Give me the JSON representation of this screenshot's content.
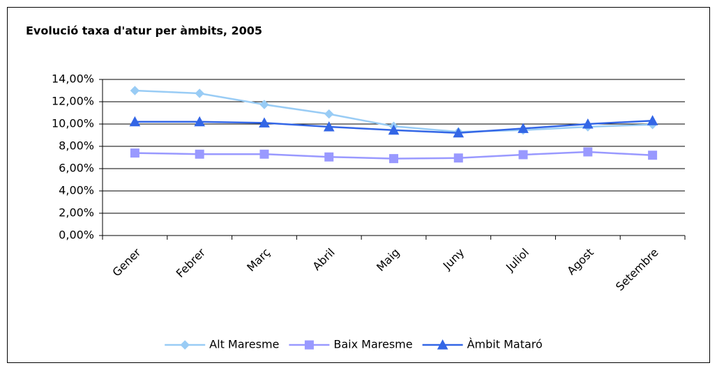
{
  "chart_data": {
    "type": "line",
    "title": "Evolució taxa d'atur per àmbits, 2005",
    "categories": [
      "Gener",
      "Febrer",
      "Març",
      "Abril",
      "Maig",
      "Juny",
      "Juliol",
      "Agost",
      "Setembre"
    ],
    "series": [
      {
        "name": "Alt Maresme",
        "color": "#99ccf5",
        "marker": "diamond",
        "values": [
          13.0,
          12.75,
          11.75,
          10.9,
          9.8,
          9.3,
          9.45,
          9.75,
          9.95
        ]
      },
      {
        "name": "Baix Maresme",
        "color": "#9999ff",
        "marker": "square",
        "values": [
          7.4,
          7.3,
          7.3,
          7.05,
          6.9,
          6.95,
          7.25,
          7.5,
          7.2
        ]
      },
      {
        "name": "Àmbit Mataró",
        "color": "#3366e6",
        "marker": "triangle",
        "values": [
          10.2,
          10.2,
          10.1,
          9.75,
          9.45,
          9.2,
          9.6,
          10.0,
          10.3
        ]
      }
    ],
    "ylim": [
      0,
      14
    ],
    "yticks": [
      {
        "value": 0,
        "label": "0,00%"
      },
      {
        "value": 2,
        "label": "2,00%"
      },
      {
        "value": 4,
        "label": "4,00%"
      },
      {
        "value": 6,
        "label": "6,00%"
      },
      {
        "value": 8,
        "label": "8,00%"
      },
      {
        "value": 10,
        "label": "10,00%"
      },
      {
        "value": 12,
        "label": "12,00%"
      },
      {
        "value": 14,
        "label": "14,00%"
      }
    ],
    "grid": true,
    "legend": "bottom"
  }
}
